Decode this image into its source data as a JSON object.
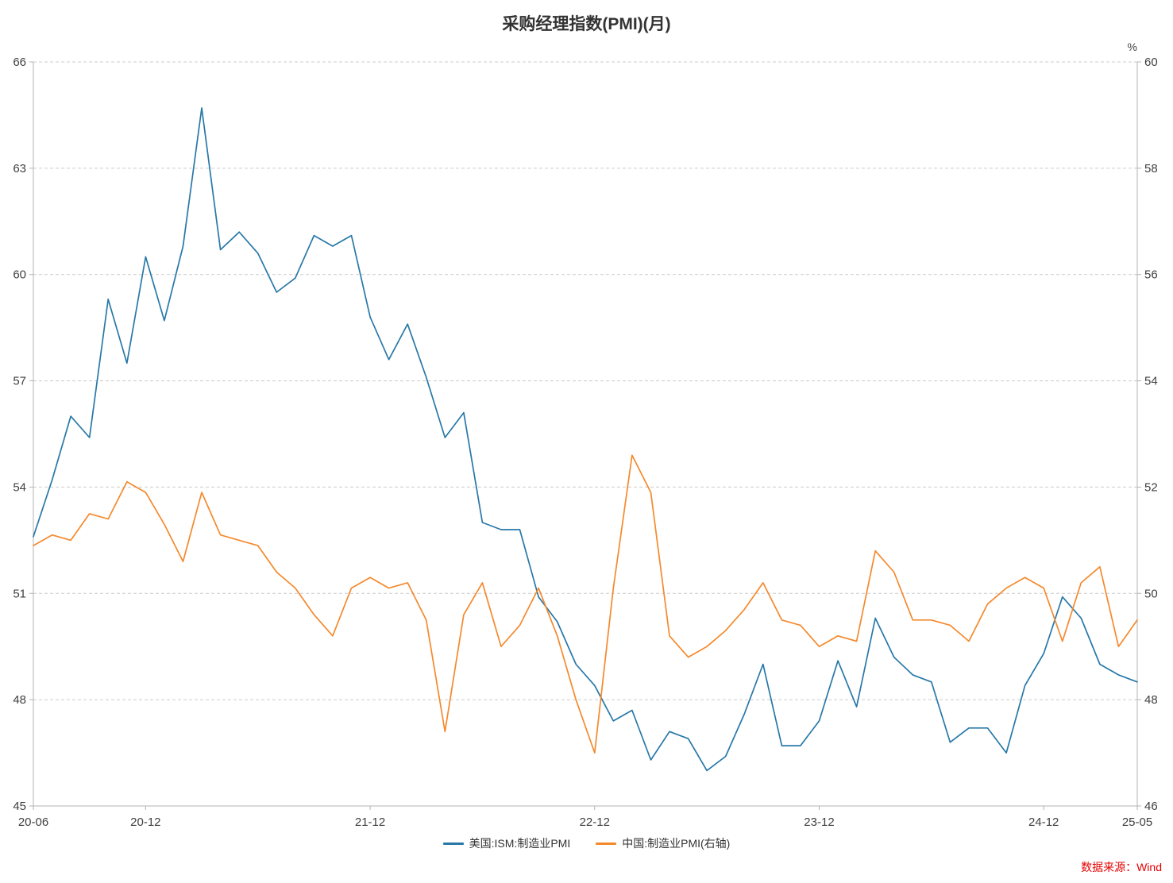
{
  "page": {
    "source": "数据来源：Wind",
    "source_color": "#e60000"
  },
  "chart_data": {
    "type": "line",
    "title": "采购经理指数(PMI)(月)",
    "frequency": "monthly",
    "x_start": "2020-06",
    "x_end": "2025-05",
    "x_tick_labels": [
      "20-06",
      "20-12",
      "21-12",
      "22-12",
      "23-12",
      "24-12",
      "25-05"
    ],
    "x_tick_month_index": [
      0,
      6,
      18,
      30,
      42,
      54,
      59
    ],
    "left_axis": {
      "min": 45,
      "max": 66,
      "ticks": [
        45,
        48,
        51,
        54,
        57,
        60,
        63,
        66
      ]
    },
    "right_axis": {
      "min": 46,
      "max": 60,
      "ticks": [
        46,
        48,
        50,
        52,
        54,
        56,
        58,
        60
      ],
      "unit": "%"
    },
    "grid": "dashed-horizontal",
    "legend_position": "bottom",
    "series": [
      {
        "name": "美国:ISM:制造业PMI",
        "axis": "left",
        "color": "#2878A8",
        "values": [
          52.6,
          54.2,
          56.0,
          55.4,
          59.3,
          57.5,
          60.5,
          58.7,
          60.8,
          64.7,
          60.7,
          61.2,
          60.6,
          59.5,
          59.9,
          61.1,
          60.8,
          61.1,
          58.8,
          57.6,
          58.6,
          57.1,
          55.4,
          56.1,
          53.0,
          52.8,
          52.8,
          50.9,
          50.2,
          49.0,
          48.4,
          47.4,
          47.7,
          46.3,
          47.1,
          46.9,
          46.0,
          46.4,
          47.6,
          49.0,
          46.7,
          46.7,
          47.4,
          49.1,
          47.8,
          50.3,
          49.2,
          48.7,
          48.5,
          46.8,
          47.2,
          47.2,
          46.5,
          48.4,
          49.3,
          50.9,
          50.3,
          49.0,
          48.7,
          48.5
        ]
      },
      {
        "name": "中国:制造业PMI(右轴)",
        "axis": "right",
        "color": "#F5892C",
        "values": [
          50.9,
          51.1,
          51.0,
          51.5,
          51.4,
          52.1,
          51.9,
          51.3,
          50.6,
          51.9,
          51.1,
          51.0,
          50.9,
          50.4,
          50.1,
          49.6,
          49.2,
          50.1,
          50.3,
          50.1,
          50.2,
          49.5,
          47.4,
          49.6,
          50.2,
          49.0,
          49.4,
          50.1,
          49.2,
          48.0,
          47.0,
          50.1,
          52.6,
          51.9,
          49.2,
          48.8,
          49.0,
          49.3,
          49.7,
          50.2,
          49.5,
          49.4,
          49.0,
          49.2,
          49.1,
          50.8,
          50.4,
          49.5,
          49.5,
          49.4,
          49.1,
          49.8,
          50.1,
          50.3,
          50.1,
          49.1,
          50.2,
          50.5,
          49.0,
          49.5
        ]
      }
    ]
  }
}
